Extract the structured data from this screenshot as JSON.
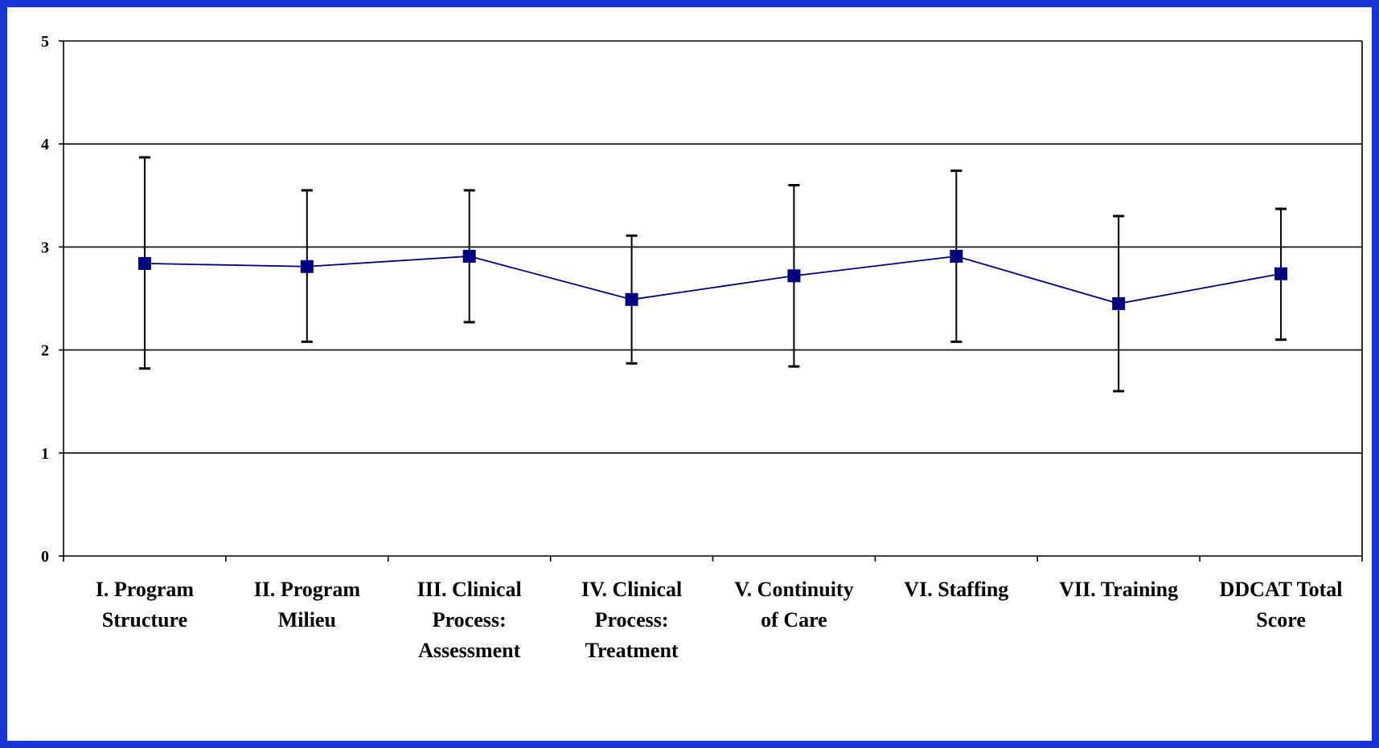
{
  "colors": {
    "background_border": "#1734d6",
    "plot_background": "#ffffff",
    "series_color": "#00007f",
    "gridline_color": "#000000",
    "errorbar_color": "#000000"
  },
  "chart_data": {
    "type": "line",
    "title": "",
    "xlabel": "",
    "ylabel": "",
    "ylim": [
      0,
      5
    ],
    "yticks": [
      "0",
      "1",
      "2",
      "3",
      "4",
      "5"
    ],
    "grid": "horizontal",
    "legend": "none",
    "categories": [
      [
        "I. Program",
        "Structure"
      ],
      [
        "II. Program",
        "Milieu"
      ],
      [
        "III. Clinical",
        "Process:",
        "Assessment"
      ],
      [
        "IV. Clinical",
        "Process:",
        "Treatment"
      ],
      [
        "V. Continuity",
        "of Care"
      ],
      [
        "VI. Staffing"
      ],
      [
        "VII. Training"
      ],
      [
        "DDCAT Total",
        "Score"
      ]
    ],
    "series": [
      {
        "marker": "square",
        "values": [
          2.84,
          2.81,
          2.91,
          2.49,
          2.72,
          2.91,
          2.45,
          2.74
        ],
        "error_low": [
          1.82,
          2.08,
          2.27,
          1.87,
          1.84,
          2.08,
          1.6,
          2.1
        ],
        "error_high": [
          3.87,
          3.55,
          3.55,
          3.11,
          3.6,
          3.74,
          3.3,
          3.37
        ]
      }
    ]
  }
}
